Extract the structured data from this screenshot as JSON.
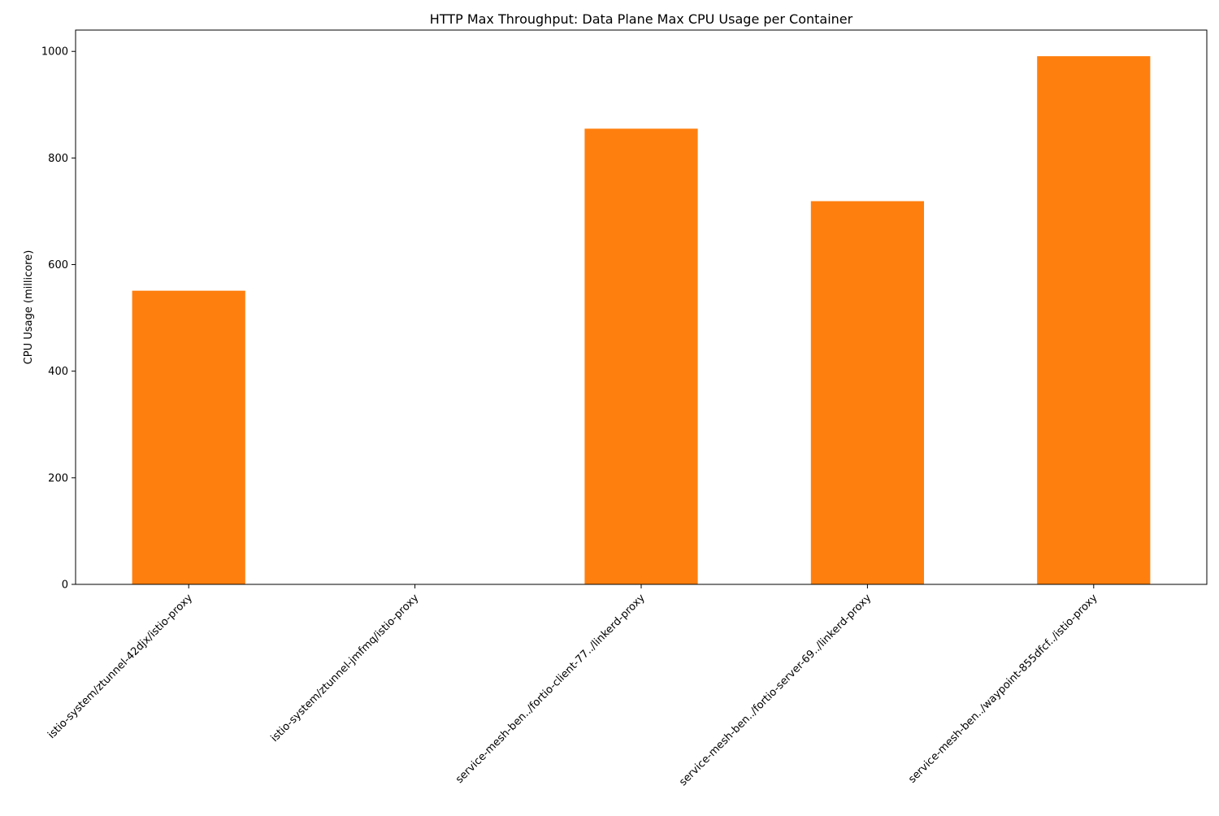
{
  "chart_data": {
    "type": "bar",
    "title": "HTTP Max Throughput: Data Plane Max CPU Usage per Container",
    "xlabel": "",
    "ylabel": "CPU Usage (millicore)",
    "categories": [
      "istio-system/ztunnel-42djx/istio-proxy",
      "istio-system/ztunnel-jmfmq/istio-proxy",
      "service-mesh-ben../fortio-client-77../linkerd-proxy",
      "service-mesh-ben../fortio-server-69../linkerd-proxy",
      "service-mesh-ben../waypoint-855dfcf../istio-proxy"
    ],
    "values": [
      551,
      0,
      855,
      719,
      991
    ],
    "ylim": [
      0,
      1040
    ],
    "yticks": [
      0,
      200,
      400,
      600,
      800,
      1000
    ],
    "bar_color": "#ff7f0e",
    "grid": false,
    "legend": "none"
  }
}
